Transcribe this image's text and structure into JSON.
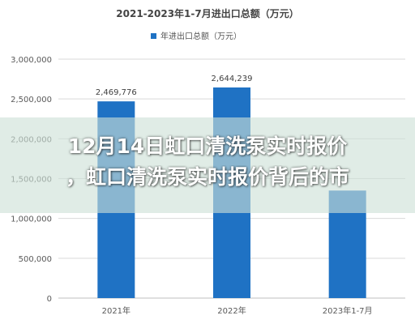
{
  "chart_data": {
    "type": "bar",
    "title": "2021-2023年1-7月进出口总额（万元）",
    "categories": [
      "2021年",
      "2022年",
      "2023年1-7月"
    ],
    "series": [
      {
        "name": "年进出口总额（万元）",
        "values": [
          2469776,
          2644239,
          1350000
        ],
        "data_labels": [
          "2,469,776",
          "2,644,239",
          ""
        ]
      }
    ],
    "ylim": [
      0,
      3000000
    ],
    "yticks": [
      0,
      500000,
      1000000,
      1500000,
      2000000,
      2500000,
      3000000
    ],
    "ytick_labels": [
      "0",
      "500,000",
      "1,000,000",
      "1,500,000",
      "2,000,000",
      "2,500,000",
      "3,000,000"
    ],
    "grid": true,
    "legend_position": "top",
    "bar_color": "#1f72c4"
  },
  "overlay": {
    "headline_line1": "12月14日虹口清洗泵实时报价",
    "headline_line2": "，虹口清洗泵实时报价背后的市"
  }
}
